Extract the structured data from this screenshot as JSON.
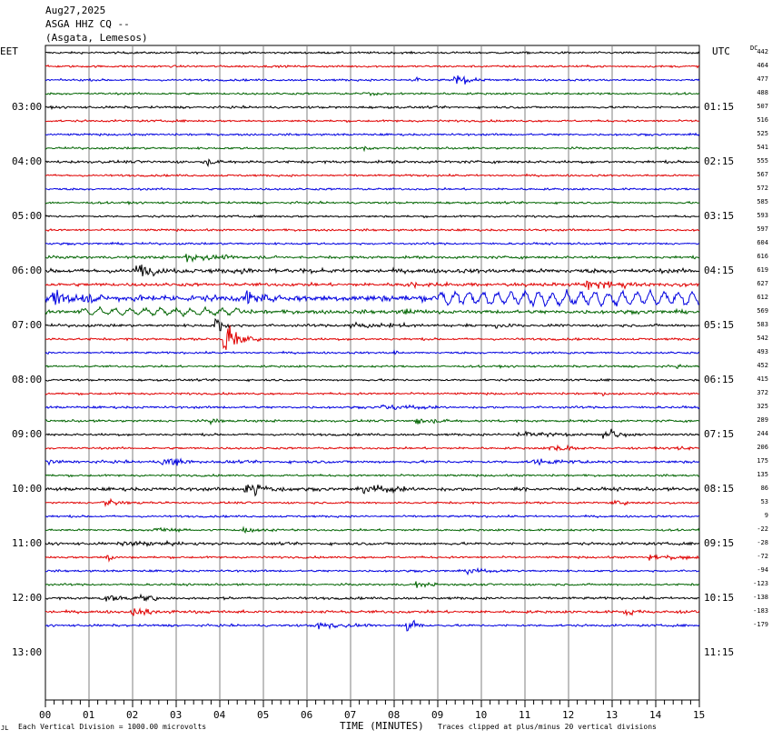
{
  "header": {
    "date": "Aug27,2025",
    "station": "ASGA HHZ CQ --",
    "location": "(Asgata, Lemesos)"
  },
  "left_axis_title": "EET",
  "right_axis_title": "UTC",
  "dc_title": "DC",
  "footer": {
    "scale_note": "Each Vertical Division = 1000.00 microvolts",
    "xlabel": "TIME (MINUTES)",
    "clip_note": "Traces clipped at plus/minus 20 vertical divisions"
  },
  "chart_data": {
    "type": "line",
    "title": "ASGA HHZ CQ --",
    "xlabel": "TIME (MINUTES)",
    "xlim": [
      0,
      15
    ],
    "x_ticks": [
      "00",
      "01",
      "02",
      "03",
      "04",
      "05",
      "06",
      "07",
      "08",
      "09",
      "10",
      "11",
      "12",
      "13",
      "14",
      "15"
    ],
    "trace_colors": [
      "#000000",
      "#e00000",
      "#0000e0",
      "#006400"
    ],
    "left_labels": [
      {
        "row": 4,
        "text": "03:00"
      },
      {
        "row": 8,
        "text": "04:00"
      },
      {
        "row": 12,
        "text": "05:00"
      },
      {
        "row": 16,
        "text": "06:00"
      },
      {
        "row": 20,
        "text": "07:00"
      },
      {
        "row": 24,
        "text": "08:00"
      },
      {
        "row": 28,
        "text": "09:00"
      },
      {
        "row": 32,
        "text": "10:00"
      },
      {
        "row": 36,
        "text": "11:00"
      },
      {
        "row": 40,
        "text": "12:00"
      },
      {
        "row": 44,
        "text": "13:00"
      }
    ],
    "right_labels": [
      {
        "row": 4,
        "text": "01:15"
      },
      {
        "row": 8,
        "text": "02:15"
      },
      {
        "row": 12,
        "text": "03:15"
      },
      {
        "row": 16,
        "text": "04:15"
      },
      {
        "row": 20,
        "text": "05:15"
      },
      {
        "row": 24,
        "text": "06:15"
      },
      {
        "row": 28,
        "text": "07:15"
      },
      {
        "row": 32,
        "text": "08:15"
      },
      {
        "row": 36,
        "text": "09:15"
      },
      {
        "row": 40,
        "text": "10:15"
      },
      {
        "row": 44,
        "text": "11:15"
      }
    ],
    "dc_offsets": [
      "442",
      "464",
      "477",
      "488",
      "507",
      "516",
      "525",
      "541",
      "555",
      "567",
      "572",
      "585",
      "593",
      "597",
      "604",
      "616",
      "619",
      "627",
      "612",
      "569",
      "583",
      "542",
      "493",
      "452",
      "415",
      "372",
      "325",
      "289",
      "244",
      "206",
      "175",
      "135",
      "86",
      "53",
      "9",
      "-22",
      "-28",
      "-72",
      "-94",
      "-123",
      "-138",
      "-183",
      "-179"
    ],
    "traces": [
      {
        "amp": 1.0,
        "events": []
      },
      {
        "amp": 1.0,
        "events": []
      },
      {
        "amp": 1.0,
        "events": [
          {
            "t": 8.4,
            "a": 5,
            "d": 0.15
          },
          {
            "t": 9.4,
            "a": 5,
            "d": 0.4
          }
        ]
      },
      {
        "amp": 1.0,
        "events": [
          {
            "t": 7.3,
            "a": 2,
            "d": 0.3
          }
        ]
      },
      {
        "amp": 1.1,
        "events": []
      },
      {
        "amp": 1.0,
        "events": []
      },
      {
        "amp": 1.0,
        "events": []
      },
      {
        "amp": 1.0,
        "events": [
          {
            "t": 7.3,
            "a": 2,
            "d": 0.3
          }
        ]
      },
      {
        "amp": 1.3,
        "events": [
          {
            "t": 3.7,
            "a": 3,
            "d": 0.2
          }
        ]
      },
      {
        "amp": 1.0,
        "events": []
      },
      {
        "amp": 1.0,
        "events": []
      },
      {
        "amp": 1.0,
        "events": []
      },
      {
        "amp": 1.0,
        "events": []
      },
      {
        "amp": 1.0,
        "events": []
      },
      {
        "amp": 1.0,
        "events": []
      },
      {
        "amp": 1.3,
        "events": [
          {
            "t": 3.2,
            "a": 4,
            "d": 0.8
          }
        ]
      },
      {
        "amp": 2.0,
        "events": [
          {
            "t": 2.1,
            "a": 7,
            "d": 0.4
          },
          {
            "t": 4.5,
            "a": 3,
            "d": 0.5
          }
        ]
      },
      {
        "amp": 1.6,
        "events": [
          {
            "t": 8.2,
            "a": 2,
            "d": 1.2
          },
          {
            "t": 12.4,
            "a": 4,
            "d": 1.2
          }
        ]
      },
      {
        "amp": 3.0,
        "wave": {
          "t0": 9.0,
          "a": 6,
          "period": 0.32
        },
        "events": [
          {
            "t": 0.2,
            "a": 7,
            "d": 0.8
          },
          {
            "t": 4.6,
            "a": 8,
            "d": 0.3
          }
        ]
      },
      {
        "amp": 1.8,
        "wave": {
          "t0": 0.8,
          "t1": 4.5,
          "a": 3,
          "period": 0.35
        },
        "events": [
          {
            "t": 8.2,
            "a": 3,
            "d": 0.5
          }
        ]
      },
      {
        "amp": 1.3,
        "events": [
          {
            "t": 3.9,
            "a": 12,
            "d": 0.15
          },
          {
            "t": 7.0,
            "a": 3,
            "d": 1.0
          },
          {
            "t": 10.3,
            "a": 3,
            "d": 0.4
          }
        ]
      },
      {
        "amp": 1.1,
        "events": [
          {
            "t": 4.1,
            "a": 22,
            "d": 0.25
          }
        ]
      },
      {
        "amp": 1.0,
        "events": [
          {
            "t": 8.0,
            "a": 3,
            "d": 0.1
          },
          {
            "t": 12.0,
            "a": 2,
            "d": 0.1
          }
        ]
      },
      {
        "amp": 1.0,
        "events": [
          {
            "t": 14.5,
            "a": 3,
            "d": 0.2
          }
        ]
      },
      {
        "amp": 1.0,
        "events": [
          {
            "t": 13.9,
            "a": 2,
            "d": 0.2
          }
        ]
      },
      {
        "amp": 1.0,
        "events": [
          {
            "t": 12.8,
            "a": 2,
            "d": 0.1
          }
        ]
      },
      {
        "amp": 1.1,
        "events": [
          {
            "t": 7.7,
            "a": 3,
            "d": 0.8
          }
        ]
      },
      {
        "amp": 1.1,
        "events": [
          {
            "t": 3.8,
            "a": 3,
            "d": 0.2
          },
          {
            "t": 8.5,
            "a": 3,
            "d": 0.5
          }
        ]
      },
      {
        "amp": 1.1,
        "events": [
          {
            "t": 10.8,
            "a": 3,
            "d": 1.0
          },
          {
            "t": 12.8,
            "a": 6,
            "d": 0.3
          }
        ]
      },
      {
        "amp": 1.0,
        "events": [
          {
            "t": 11.6,
            "a": 4,
            "d": 0.5
          },
          {
            "t": 14.4,
            "a": 2,
            "d": 0.5
          }
        ]
      },
      {
        "amp": 1.3,
        "events": [
          {
            "t": 0.1,
            "a": 3,
            "d": 0.2
          },
          {
            "t": 2.7,
            "a": 6,
            "d": 0.4
          },
          {
            "t": 11.2,
            "a": 3,
            "d": 0.5
          }
        ]
      },
      {
        "amp": 1.0,
        "events": []
      },
      {
        "amp": 1.6,
        "events": [
          {
            "t": 4.6,
            "a": 15,
            "d": 0.3
          },
          {
            "t": 7.3,
            "a": 4,
            "d": 1.0
          }
        ]
      },
      {
        "amp": 1.0,
        "events": [
          {
            "t": 1.3,
            "a": 3,
            "d": 0.5
          },
          {
            "t": 13.0,
            "a": 2,
            "d": 0.5
          }
        ]
      },
      {
        "amp": 1.0,
        "events": []
      },
      {
        "amp": 1.0,
        "events": [
          {
            "t": 2.5,
            "a": 3,
            "d": 0.4
          },
          {
            "t": 4.5,
            "a": 3,
            "d": 0.4
          }
        ]
      },
      {
        "amp": 1.3,
        "events": [
          {
            "t": 1.8,
            "a": 3,
            "d": 0.8
          }
        ]
      },
      {
        "amp": 1.0,
        "events": [
          {
            "t": 1.4,
            "a": 6,
            "d": 0.15
          },
          {
            "t": 13.8,
            "a": 3,
            "d": 1.0
          }
        ]
      },
      {
        "amp": 1.0,
        "events": [
          {
            "t": 9.7,
            "a": 4,
            "d": 0.3
          }
        ]
      },
      {
        "amp": 1.0,
        "events": [
          {
            "t": 8.5,
            "a": 3,
            "d": 0.4
          }
        ]
      },
      {
        "amp": 1.2,
        "events": [
          {
            "t": 1.3,
            "a": 3,
            "d": 0.8
          },
          {
            "t": 2.2,
            "a": 4,
            "d": 0.3
          }
        ]
      },
      {
        "amp": 1.3,
        "events": [
          {
            "t": 2.0,
            "a": 3,
            "d": 1.2
          },
          {
            "t": 13.3,
            "a": 4,
            "d": 0.4
          }
        ]
      },
      {
        "amp": 1.1,
        "events": [
          {
            "t": 6.2,
            "a": 4,
            "d": 0.6
          },
          {
            "t": 8.3,
            "a": 10,
            "d": 0.2
          }
        ]
      }
    ]
  }
}
